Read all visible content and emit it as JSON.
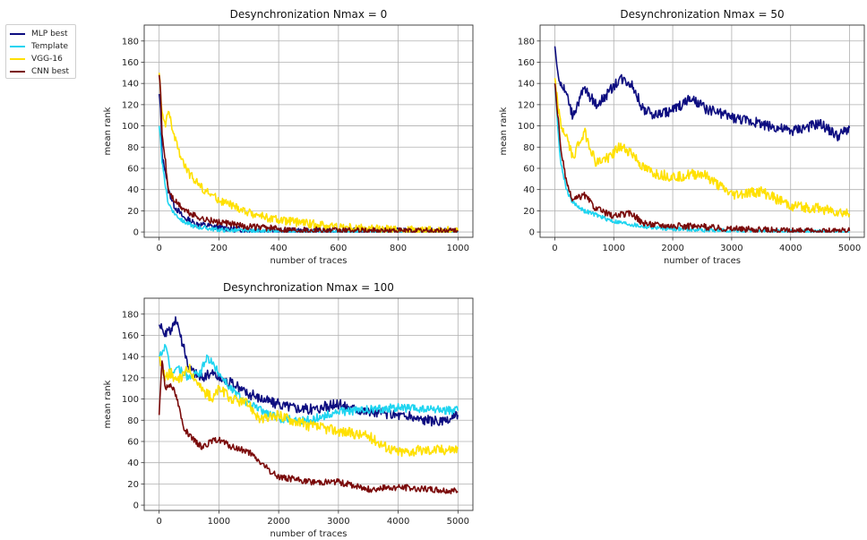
{
  "legend": {
    "entries": [
      {
        "label": "MLP best",
        "color": "#0d0d80"
      },
      {
        "label": "Template",
        "color": "#1ed4f0"
      },
      {
        "label": "VGG-16",
        "color": "#ffe000"
      },
      {
        "label": "CNN best",
        "color": "#7a0a0a"
      }
    ]
  },
  "chart_data": [
    {
      "type": "line",
      "title": "Desynchronization Nmax = 0",
      "xlabel": "number of traces",
      "ylabel": "mean rank",
      "xlim": [
        -50,
        1050
      ],
      "ylim": [
        -5,
        195
      ],
      "xticks": [
        0,
        200,
        400,
        600,
        800,
        1000
      ],
      "yticks": [
        0,
        20,
        40,
        60,
        80,
        100,
        120,
        140,
        160,
        180
      ],
      "grid": true,
      "series": [
        {
          "name": "MLP best",
          "color": "#0d0d80",
          "noise": 3,
          "x": [
            0,
            5,
            10,
            20,
            30,
            50,
            80,
            120,
            200,
            300,
            400,
            600,
            800,
            1000
          ],
          "y": [
            130,
            115,
            70,
            60,
            40,
            25,
            14,
            8,
            4,
            2,
            1,
            1,
            1,
            1
          ]
        },
        {
          "name": "Template",
          "color": "#1ed4f0",
          "noise": 2,
          "x": [
            0,
            5,
            10,
            20,
            30,
            50,
            80,
            120,
            200,
            300,
            400,
            1000
          ],
          "y": [
            100,
            85,
            65,
            45,
            28,
            18,
            10,
            5,
            2,
            1,
            0,
            0
          ]
        },
        {
          "name": "VGG-16",
          "color": "#ffe000",
          "noise": 4,
          "x": [
            0,
            5,
            10,
            20,
            30,
            50,
            80,
            100,
            150,
            200,
            300,
            400,
            500,
            600,
            700,
            800,
            1000
          ],
          "y": [
            150,
            130,
            110,
            100,
            115,
            90,
            65,
            55,
            40,
            30,
            18,
            11,
            8,
            5,
            3,
            2,
            1
          ]
        },
        {
          "name": "CNN best",
          "color": "#7a0a0a",
          "noise": 3,
          "x": [
            0,
            5,
            10,
            20,
            30,
            50,
            80,
            100,
            150,
            200,
            300,
            400,
            600,
            1000
          ],
          "y": [
            148,
            130,
            90,
            70,
            40,
            30,
            22,
            18,
            12,
            9,
            5,
            3,
            1,
            1
          ]
        }
      ]
    },
    {
      "type": "line",
      "title": "Desynchronization Nmax = 50",
      "xlabel": "number of traces",
      "ylabel": "mean rank",
      "xlim": [
        -250,
        5250
      ],
      "ylim": [
        -5,
        195
      ],
      "xticks": [
        0,
        1000,
        2000,
        3000,
        4000,
        5000
      ],
      "yticks": [
        0,
        20,
        40,
        60,
        80,
        100,
        120,
        140,
        160,
        180
      ],
      "grid": true,
      "series": [
        {
          "name": "MLP best",
          "color": "#0d0d80",
          "noise": 5,
          "x": [
            0,
            50,
            100,
            200,
            300,
            500,
            700,
            900,
            1100,
            1300,
            1500,
            1700,
            2000,
            2300,
            2600,
            3000,
            3500,
            4000,
            4500,
            4800,
            5000
          ],
          "y": [
            175,
            150,
            140,
            130,
            110,
            135,
            120,
            130,
            145,
            140,
            115,
            110,
            115,
            125,
            115,
            108,
            102,
            95,
            102,
            90,
            98
          ]
        },
        {
          "name": "Template",
          "color": "#1ed4f0",
          "noise": 2,
          "x": [
            0,
            50,
            100,
            200,
            300,
            500,
            700,
            1000,
            1500,
            2000,
            3000,
            5000
          ],
          "y": [
            140,
            100,
            65,
            40,
            28,
            20,
            16,
            10,
            5,
            3,
            1,
            0
          ]
        },
        {
          "name": "VGG-16",
          "color": "#ffe000",
          "noise": 5,
          "x": [
            0,
            50,
            100,
            200,
            300,
            500,
            700,
            900,
            1100,
            1300,
            1500,
            1700,
            2000,
            2500,
            3000,
            3500,
            4000,
            4500,
            5000
          ],
          "y": [
            145,
            120,
            100,
            90,
            70,
            95,
            65,
            70,
            80,
            75,
            60,
            55,
            52,
            55,
            35,
            38,
            25,
            22,
            17
          ]
        },
        {
          "name": "CNN best",
          "color": "#7a0a0a",
          "noise": 3,
          "x": [
            0,
            50,
            100,
            200,
            300,
            500,
            700,
            1000,
            1300,
            1500,
            2000,
            2500,
            3000,
            4000,
            5000
          ],
          "y": [
            140,
            110,
            80,
            45,
            30,
            35,
            22,
            15,
            18,
            8,
            6,
            5,
            3,
            1,
            1
          ]
        }
      ]
    },
    {
      "type": "line",
      "title": "Desynchronization Nmax = 100",
      "xlabel": "number of traces",
      "ylabel": "mean rank",
      "xlim": [
        -250,
        5250
      ],
      "ylim": [
        -5,
        195
      ],
      "xticks": [
        0,
        1000,
        2000,
        3000,
        4000,
        5000
      ],
      "yticks": [
        0,
        20,
        40,
        60,
        80,
        100,
        120,
        140,
        160,
        180
      ],
      "grid": true,
      "series": [
        {
          "name": "MLP best",
          "color": "#0d0d80",
          "noise": 5,
          "x": [
            0,
            100,
            200,
            300,
            400,
            500,
            700,
            900,
            1000,
            1200,
            1500,
            2000,
            2500,
            3000,
            3500,
            4000,
            4500,
            4800,
            5000
          ],
          "y": [
            170,
            160,
            165,
            175,
            150,
            130,
            120,
            125,
            120,
            115,
            105,
            95,
            90,
            95,
            88,
            85,
            80,
            78,
            85
          ]
        },
        {
          "name": "Template",
          "color": "#1ed4f0",
          "noise": 4,
          "x": [
            0,
            100,
            200,
            300,
            500,
            700,
            800,
            1000,
            1200,
            1500,
            2000,
            2500,
            3000,
            3500,
            4000,
            4500,
            5000
          ],
          "y": [
            140,
            150,
            125,
            130,
            120,
            125,
            140,
            125,
            110,
            95,
            82,
            80,
            88,
            90,
            92,
            90,
            89
          ]
        },
        {
          "name": "VGG-16",
          "color": "#ffe000",
          "noise": 5,
          "x": [
            0,
            100,
            200,
            300,
            500,
            700,
            900,
            1000,
            1200,
            1500,
            1700,
            2000,
            2500,
            3000,
            3500,
            3800,
            4000,
            4500,
            5000
          ],
          "y": [
            140,
            120,
            125,
            115,
            130,
            110,
            100,
            110,
            100,
            95,
            80,
            85,
            75,
            70,
            65,
            55,
            50,
            52,
            53
          ]
        },
        {
          "name": "CNN best",
          "color": "#7a0a0a",
          "noise": 3,
          "x": [
            0,
            50,
            100,
            200,
            300,
            400,
            500,
            700,
            900,
            1000,
            1200,
            1500,
            1700,
            1900,
            2000,
            2500,
            3000,
            3500,
            4000,
            4500,
            5000
          ],
          "y": [
            85,
            140,
            110,
            115,
            100,
            75,
            65,
            55,
            60,
            62,
            55,
            50,
            40,
            30,
            27,
            22,
            22,
            15,
            17,
            15,
            13
          ]
        }
      ]
    }
  ]
}
